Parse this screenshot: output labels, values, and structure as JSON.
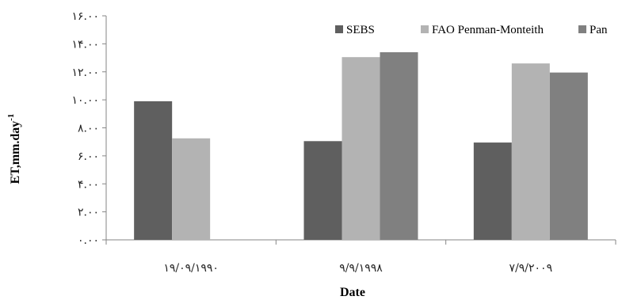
{
  "chart_data": {
    "type": "bar",
    "xlabel": "Date",
    "ylabel": "ET,mm.day",
    "ylabel_superscript": "-1",
    "categories": [
      "۱۹/۰۹/۱۹۹۰",
      "۹/۹/۱۹۹۸",
      "۷/۹/۲۰۰۹"
    ],
    "series": [
      {
        "name": "SEBS",
        "color": "#5f5f5f",
        "values": [
          9.9,
          7.05,
          6.95
        ]
      },
      {
        "name": "FAO Penman-Monteith",
        "color": "#b3b3b3",
        "values": [
          7.25,
          13.05,
          12.6
        ]
      },
      {
        "name": "Pan",
        "color": "#808080",
        "values": [
          null,
          13.4,
          11.95
        ]
      }
    ],
    "ylim": [
      0,
      16
    ],
    "yticks": [
      0,
      2,
      4,
      6,
      8,
      10,
      12,
      14,
      16
    ],
    "ytick_labels": [
      "۰.۰۰",
      "۲.۰۰",
      "۴.۰۰",
      "۶.۰۰",
      "۸.۰۰",
      "۱۰.۰۰",
      "۱۲.۰۰",
      "۱۴.۰۰",
      "۱۶.۰۰"
    ],
    "legend_position": "top-right",
    "grid": false
  }
}
